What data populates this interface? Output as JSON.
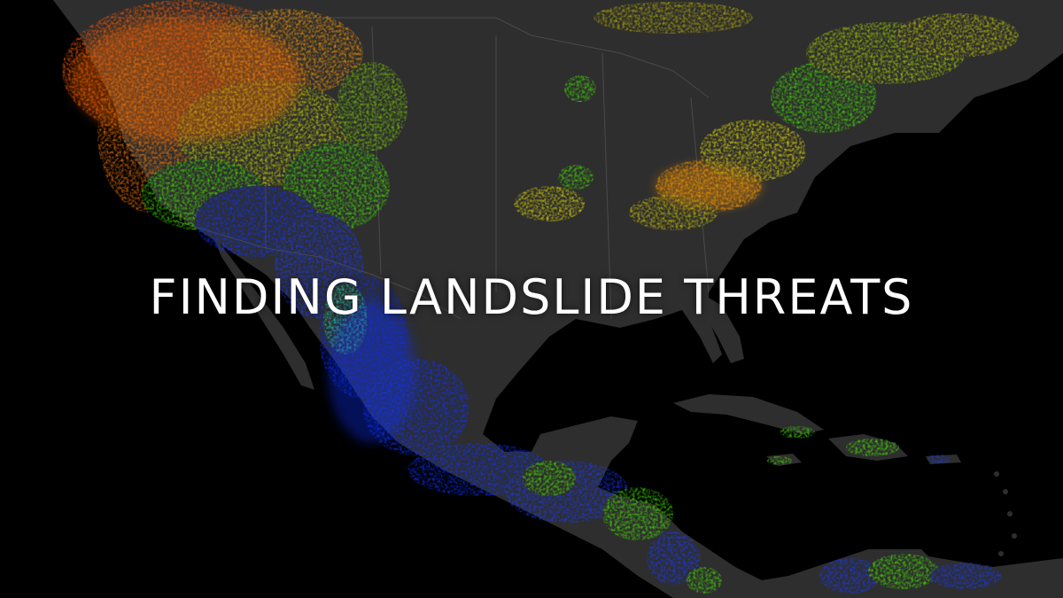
{
  "title": "FINDING LANDSLIDE THREATS",
  "map": {
    "region": "North and Central America",
    "colors": {
      "ocean": "#000000",
      "land": "#2e2e2e",
      "border": "#4a4a4a",
      "risk_very_high": "#ff5a00",
      "risk_high": "#ff9a00",
      "risk_moderate": "#e8e000",
      "risk_low": "#43e800",
      "risk_very_low": "#1030ff"
    }
  }
}
